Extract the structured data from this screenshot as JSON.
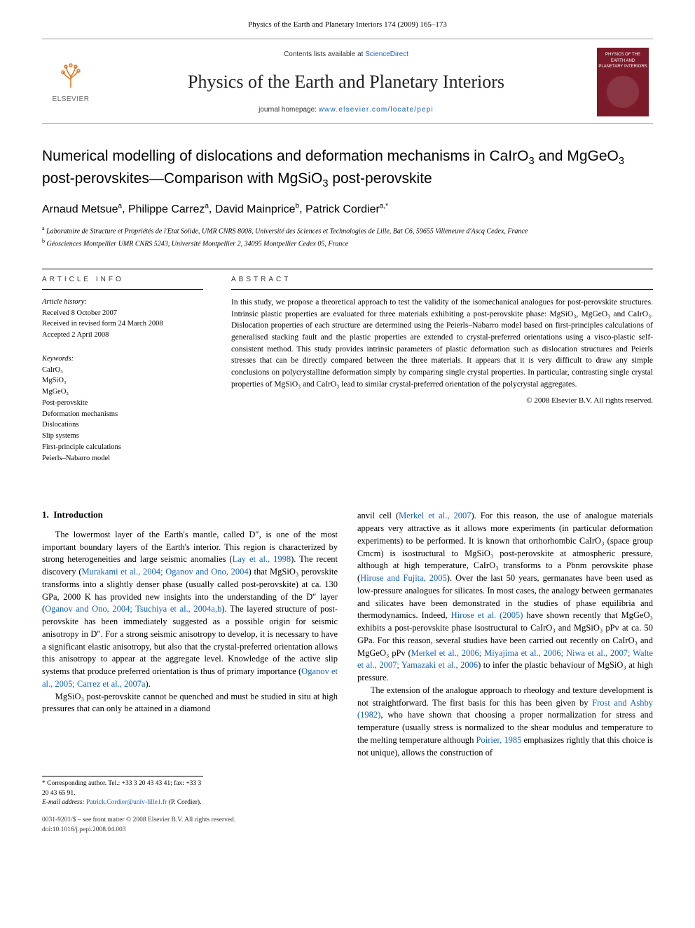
{
  "header": {
    "citation": "Physics of the Earth and Planetary Interiors 174 (2009) 165–173"
  },
  "banner": {
    "publisher_name": "ELSEVIER",
    "contents_prefix": "Contents lists available at ",
    "contents_link": "ScienceDirect",
    "journal_title": "Physics of the Earth and Planetary Interiors",
    "homepage_prefix": "journal homepage: ",
    "homepage_url": "www.elsevier.com/locate/pepi",
    "cover_text": "PHYSICS OF THE EARTH AND PLANETARY INTERIORS"
  },
  "article": {
    "title_html": "Numerical modelling of dislocations and deformation mechanisms in CaIrO<sub>3</sub> and MgGeO<sub>3</sub> post-perovskites—Comparison with MgSiO<sub>3</sub> post-perovskite",
    "authors": [
      {
        "name": "Arnaud Metsue",
        "marks": "a"
      },
      {
        "name": "Philippe Carrez",
        "marks": "a"
      },
      {
        "name": "David Mainprice",
        "marks": "b"
      },
      {
        "name": "Patrick Cordier",
        "marks": "a,*"
      }
    ],
    "affiliations": [
      {
        "mark": "a",
        "text": "Laboratoire de Structure et Propriétés de l'Etat Solide, UMR CNRS 8008, Université des Sciences et Technologies de Lille, Bat C6, 59655 Villeneuve d'Ascq Cedex, France"
      },
      {
        "mark": "b",
        "text": "Géosciences Montpellier UMR CNRS 5243, Université Montpellier 2, 34095 Montpellier Cedex 05, France"
      }
    ]
  },
  "info": {
    "label": "article info",
    "history_heading": "Article history:",
    "history": [
      "Received 8 October 2007",
      "Received in revised form 24 March 2008",
      "Accepted 2 April 2008"
    ],
    "keywords_heading": "Keywords:",
    "keywords": [
      "CaIrO₃",
      "MgSiO₃",
      "MgGeO₃",
      "Post-perovskite",
      "Deformation mechanisms",
      "Dislocations",
      "Slip systems",
      "First-principle calculations",
      "Peierls–Nabarro model"
    ]
  },
  "abstract": {
    "label": "abstract",
    "text": "In this study, we propose a theoretical approach to test the validity of the isomechanical analogues for post-perovskite structures. Intrinsic plastic properties are evaluated for three materials exhibiting a post-perovskite phase: MgSiO₃, MgGeO₃ and CaIrO₃. Dislocation properties of each structure are determined using the Peierls–Nabarro model based on first-principles calculations of generalised stacking fault and the plastic properties are extended to crystal-preferred orientations using a visco-plastic self-consistent method. This study provides intrinsic parameters of plastic deformation such as dislocation structures and Peierls stresses that can be directly compared between the three materials. It appears that it is very difficult to draw any simple conclusions on polycrystalline deformation simply by comparing single crystal properties. In particular, contrasting single crystal properties of MgSiO₃ and CaIrO₃ lead to similar crystal-preferred orientation of the polycrystal aggregates.",
    "copyright": "© 2008 Elsevier B.V. All rights reserved."
  },
  "body": {
    "section_number": "1.",
    "section_title": "Introduction",
    "left_p1_parts": [
      "The lowermost layer of the Earth's mantle, called D″, is one of the most important boundary layers of the Earth's interior. This region is characterized by strong heterogeneities and large seismic anomalies (",
      "Lay et al., 1998",
      "). The recent discovery (",
      "Murakami et al., 2004; Oganov and Ono, 2004",
      ") that MgSiO₃ perovskite transforms into a slightly denser phase (usually called post-perovskite) at ca. 130 GPa, 2000 K has provided new insights into the understanding of the D″ layer (",
      "Oganov and Ono, 2004; Tsuchiya et al., 2004a,b",
      "). The layered structure of post-perovskite has been immediately suggested as a possible origin for seismic anisotropy in D″. For a strong seismic anisotropy to develop, it is necessary to have a significant elastic anisotropy, but also that the crystal-preferred orientation allows this anisotropy to appear at the aggregate level. Knowledge of the active slip systems that produce preferred orientation is thus of primary importance (",
      "Oganov et al., 2005; Carrez et al., 2007a",
      ")."
    ],
    "left_p2": "MgSiO₃ post-perovskite cannot be quenched and must be studied in situ at high pressures that can only be attained in a diamond",
    "right_p1_parts": [
      "anvil cell (",
      "Merkel et al., 2007",
      "). For this reason, the use of analogue materials appears very attractive as it allows more experiments (in particular deformation experiments) to be performed. It is known that orthorhombic CaIrO₃ (space group Cmcm) is isostructural to MgSiO₃ post-perovskite at atmospheric pressure, although at high temperature, CaIrO₃ transforms to a Pbnm perovskite phase (",
      "Hirose and Fujita, 2005",
      "). Over the last 50 years, germanates have been used as low-pressure analogues for silicates. In most cases, the analogy between germanates and silicates have been demonstrated in the studies of phase equilibria and thermodynamics. Indeed, ",
      "Hirose et al. (2005)",
      " have shown recently that MgGeO₃ exhibits a post-perovskite phase isostructural to CaIrO₃ and MgSiO₃ pPv at ca. 50 GPa. For this reason, several studies have been carried out recently on CaIrO₃ and MgGeO₃ pPv (",
      "Merkel et al., 2006; Miyajima et al., 2006; Niwa et al., 2007; Walte et al., 2007; Yamazaki et al., 2006",
      ") to infer the plastic behaviour of MgSiO₃ at high pressure."
    ],
    "right_p2_parts": [
      "The extension of the analogue approach to rheology and texture development is not straightforward. The first basis for this has been given by ",
      "Frost and Ashby (1982)",
      ", who have shown that choosing a proper normalization for stress and temperature (usually stress is normalized to the shear modulus and temperature to the melting temperature although ",
      "Poirier, 1985",
      " emphasizes rightly that this choice is not unique), allows the construction of"
    ]
  },
  "corresponding": {
    "line1": "* Corresponding author. Tel.: +33 3 20 43 43 41; fax: +33 3 20 43 65 91.",
    "line2_label": "E-mail address: ",
    "line2_email": "Patrick.Cordier@univ-lille1.fr",
    "line2_suffix": " (P. Cordier)."
  },
  "footer": {
    "line1": "0031-9201/$ – see front matter © 2008 Elsevier B.V. All rights reserved.",
    "line2": "doi:10.1016/j.pepi.2008.04.003"
  },
  "colors": {
    "link": "#1560bd",
    "elsevier_orange": "#ec6500",
    "cover_bg": "#7b1b2a"
  }
}
